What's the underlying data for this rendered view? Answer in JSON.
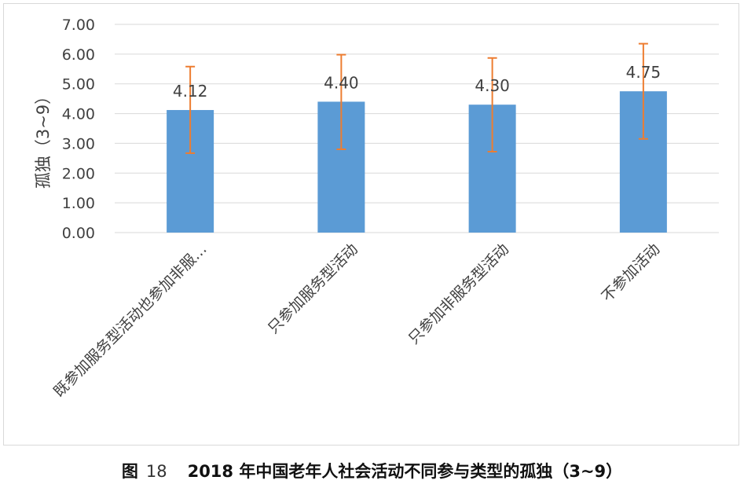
{
  "chart_data": {
    "type": "bar",
    "title": "",
    "xlabel": "",
    "ylabel": "孤独（3~9）",
    "ylim": [
      0,
      7
    ],
    "yticks": [
      "0.00",
      "1.00",
      "2.00",
      "3.00",
      "4.00",
      "5.00",
      "6.00",
      "7.00"
    ],
    "categories": [
      "既参加服务型活动也参加非服…",
      "只参加服务型活动",
      "只参加非服务型活动",
      "不参加活动"
    ],
    "values": [
      4.12,
      4.4,
      4.3,
      4.75
    ],
    "value_labels": [
      "4.12",
      "4.40",
      "4.30",
      "4.75"
    ],
    "error_low": [
      2.67,
      2.8,
      2.72,
      3.15
    ],
    "error_high": [
      5.58,
      5.98,
      5.87,
      6.35
    ],
    "grid": true,
    "legend": "none",
    "colors": {
      "bar": "#5b9bd5",
      "error_bar": "#ed7d31",
      "grid": "#d9d9d9",
      "text": "#404040"
    }
  },
  "caption": {
    "label": "图",
    "number": "18",
    "title": "2018 年中国老年人社会活动不同参与类型的孤独（3~9）"
  }
}
